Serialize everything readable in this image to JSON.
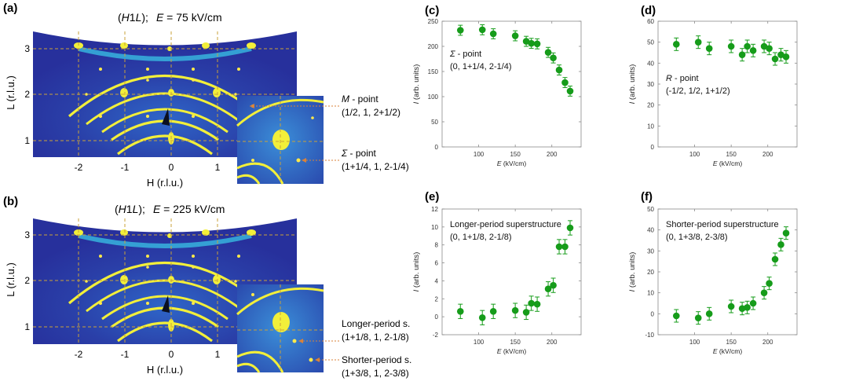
{
  "figure": {
    "panel_a": {
      "letter": "(a)",
      "title_prefix": "(",
      "title_h": "H",
      "title_mid": "1",
      "title_l": "L",
      "title_suffix": ");",
      "title_e": "E",
      "title_value": " = 75 kV/cm",
      "x_label": "H (r.l.u.)",
      "y_label": "L (r.l.u.)",
      "x_ticks": [
        "-2",
        "-1",
        "0",
        "1",
        "2"
      ],
      "y_ticks": [
        "1",
        "2",
        "3"
      ],
      "annotations": [
        {
          "name_main": "M",
          "name_rest": " - point",
          "coords": "(1/2, 1, 2+1/2)"
        },
        {
          "name_main": "Σ",
          "name_rest": " - point",
          "coords": "(1+1/4, 1, 2-1/4)"
        }
      ]
    },
    "panel_b": {
      "letter": "(b)",
      "title_prefix": "(",
      "title_h": "H",
      "title_mid": "1",
      "title_l": "L",
      "title_suffix": ");",
      "title_e": "E",
      "title_value": " = 225 kV/cm",
      "x_label": "H (r.l.u.)",
      "y_label": "L (r.l.u.)",
      "x_ticks": [
        "-2",
        "-1",
        "0",
        "1",
        "2"
      ],
      "y_ticks": [
        "1",
        "2",
        "3"
      ],
      "annotations": [
        {
          "name_main": "Longer-period s.",
          "name_rest": "",
          "coords": "(1+1/8, 1, 2-1/8)"
        },
        {
          "name_main": "Shorter-period s.",
          "name_rest": "",
          "coords": "(1+3/8, 1, 2-3/8)"
        }
      ]
    }
  },
  "colors": {
    "heatmap_bg": "#27309c",
    "heatmap_mid": "#1f7fd0",
    "ring": "#f2ef3a",
    "marker": "#169c1a",
    "dashed": "#c9a23a",
    "arrow": "#d9823a"
  },
  "chart_data": [
    {
      "panel": "(c)",
      "type": "scatter",
      "annotation_line1": "Σ - point",
      "annotation_line2": "(0, 1+1/4, 2-1/4)",
      "xlabel": "E (kV/cm)",
      "ylabel": "I (arb. units)",
      "xlim": [
        50,
        240
      ],
      "ylim": [
        0,
        250
      ],
      "x_ticks": [
        100,
        150,
        200
      ],
      "y_ticks": [
        0,
        50,
        100,
        150,
        200,
        250
      ],
      "x": [
        75,
        105,
        120,
        150,
        165,
        172,
        180,
        195,
        202,
        210,
        218,
        225
      ],
      "y": [
        232,
        233,
        225,
        221,
        210,
        206,
        205,
        188,
        177,
        153,
        128,
        111
      ],
      "err": [
        10,
        10,
        10,
        10,
        10,
        10,
        10,
        10,
        10,
        10,
        10,
        10
      ]
    },
    {
      "panel": "(d)",
      "type": "scatter",
      "annotation_line1": "R - point",
      "annotation_line2": "(-1/2, 1/2, 1+1/2)",
      "xlabel": "E (kV/cm)",
      "ylabel": "I (arb. units)",
      "xlim": [
        50,
        240
      ],
      "ylim": [
        0,
        60
      ],
      "x_ticks": [
        100,
        150,
        200
      ],
      "y_ticks": [
        0,
        10,
        20,
        30,
        40,
        50,
        60
      ],
      "x": [
        75,
        105,
        120,
        150,
        165,
        172,
        180,
        195,
        202,
        210,
        218,
        225
      ],
      "y": [
        49,
        50,
        47,
        48,
        44,
        48,
        46,
        48,
        47,
        42,
        44,
        43
      ],
      "err": [
        3,
        3,
        3,
        3,
        3,
        3,
        3,
        3,
        3,
        3,
        3,
        3
      ]
    },
    {
      "panel": "(e)",
      "type": "scatter",
      "annotation_line1": "Longer-period superstructure",
      "annotation_line2": "(0, 1+1/8, 2-1/8)",
      "xlabel": "E (kV/cm)",
      "ylabel": "I (arb. units)",
      "xlim": [
        50,
        240
      ],
      "ylim": [
        -2,
        12
      ],
      "x_ticks": [
        100,
        150,
        200
      ],
      "y_ticks": [
        -2,
        0,
        2,
        4,
        6,
        8,
        10,
        12
      ],
      "x": [
        75,
        105,
        120,
        150,
        165,
        172,
        180,
        195,
        202,
        210,
        218,
        225
      ],
      "y": [
        0.6,
        -0.1,
        0.6,
        0.7,
        0.5,
        1.5,
        1.4,
        3.1,
        3.5,
        7.8,
        7.8,
        9.9
      ],
      "err": [
        0.8,
        0.8,
        0.8,
        0.8,
        0.8,
        0.8,
        0.8,
        0.8,
        0.8,
        0.8,
        0.8,
        0.8
      ]
    },
    {
      "panel": "(f)",
      "type": "scatter",
      "annotation_line1": "Shorter-period superstructure",
      "annotation_line2": "(0, 1+3/8, 2-3/8)",
      "xlabel": "E (kV/cm)",
      "ylabel": "I (arb. units)",
      "xlim": [
        50,
        240
      ],
      "ylim": [
        -10,
        50
      ],
      "x_ticks": [
        100,
        150,
        200
      ],
      "y_ticks": [
        -10,
        0,
        10,
        20,
        30,
        40,
        50
      ],
      "x": [
        75,
        105,
        120,
        150,
        165,
        172,
        180,
        195,
        202,
        210,
        218,
        225
      ],
      "y": [
        -1,
        -2,
        0,
        3.5,
        2.5,
        3,
        5,
        10,
        14.5,
        26,
        33,
        38.5
      ],
      "err": [
        3,
        3,
        3,
        3,
        3,
        3,
        3,
        3,
        3,
        3,
        3,
        3
      ]
    }
  ]
}
